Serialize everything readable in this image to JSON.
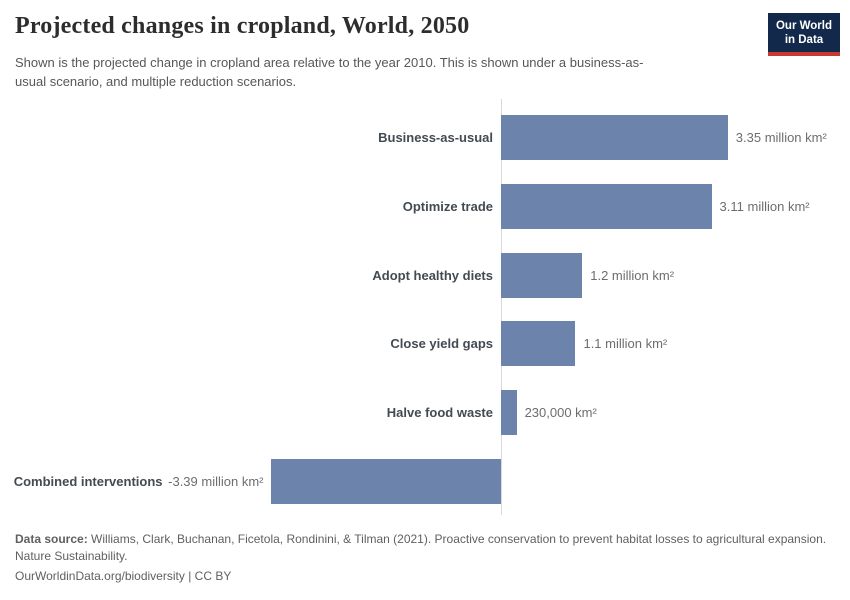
{
  "header": {
    "title": "Projected changes in cropland, World, 2050",
    "subtitle": "Shown is the projected change in cropland area relative to the year 2010. This is shown under a business-as-usual scenario, and multiple reduction scenarios.",
    "logo": {
      "line1": "Our World",
      "line2": "in Data",
      "bg_color": "#12294b",
      "accent_color": "#c63a31"
    }
  },
  "chart_data": {
    "type": "bar",
    "orientation": "horizontal",
    "title": "Projected changes in cropland, World, 2050",
    "unit": "million km²",
    "categories": [
      "Business-as-usual",
      "Optimize trade",
      "Adopt healthy diets",
      "Close yield gaps",
      "Halve food waste",
      "Combined interventions"
    ],
    "values": [
      3.35,
      3.11,
      1.2,
      1.1,
      0.23,
      -3.39
    ],
    "value_labels": [
      "3.35 million km²",
      "3.11 million km²",
      "1.2 million km²",
      "1.1 million km²",
      "230,000 km²",
      "-3.39 million km²"
    ],
    "bar_color": "#6c84ac",
    "baseline": 0,
    "xlim": [
      -3.39,
      3.35
    ],
    "grid": false,
    "legend": false
  },
  "footer": {
    "source_label": "Data source:",
    "source_text": "Williams, Clark, Buchanan, Ficetola, Rondinini, & Tilman (2021). Proactive conservation to prevent habitat losses to agricultural expansion. Nature Sustainability.",
    "link": "OurWorldinData.org/biodiversity",
    "separator": "|",
    "license": "CC BY"
  }
}
